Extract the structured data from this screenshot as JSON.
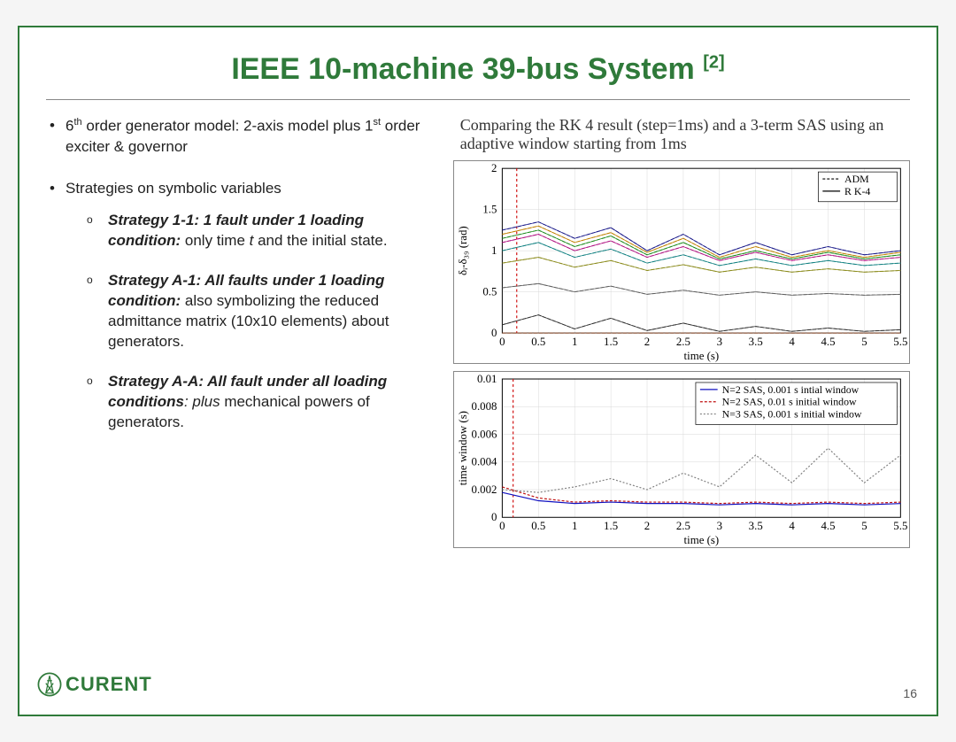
{
  "title": "IEEE 10-machine 39-bus System",
  "title_ref": "[2]",
  "bullets": {
    "b1_pre": "6",
    "b1_sup1": "th",
    "b1_mid": " order generator model: 2-axis model plus 1",
    "b1_sup2": "st",
    "b1_post": " order exciter & governor",
    "b2": "Strategies on symbolic variables",
    "s1_bold": "Strategy 1-1: 1 fault under 1 loading condition:",
    "s1_rest": " only time ",
    "s1_t": "t",
    "s1_after": " and the initial state.",
    "s2_bold": "Strategy A-1: All faults under 1 loading condition:",
    "s2_rest": " also symbolizing the reduced admittance matrix (10x10 elements) about generators.",
    "s3_bold": "Strategy A-A: All fault under all loading conditions",
    "s3_rest": ": plus",
    "s3_after": " mechanical powers of generators."
  },
  "caption": "Comparing the RK 4 result (step=1ms) and a 3-term SAS using an adaptive window starting from 1ms",
  "chart1": {
    "type": "line",
    "xlabel": "time (s)",
    "ylabel": "δᵢ-δ₃₉ (rad)",
    "xlim": [
      0,
      5.5
    ],
    "ylim": [
      0,
      2
    ],
    "xticks": [
      0,
      0.5,
      1,
      1.5,
      2,
      2.5,
      3,
      3.5,
      4,
      4.5,
      5,
      5.5
    ],
    "yticks": [
      0,
      0.5,
      1,
      1.5,
      2
    ],
    "legend": [
      "ADM",
      "R K-4"
    ],
    "grid_color": "#d8d8d8",
    "vline_x": 0.2,
    "vline_color": "#d01010",
    "series_colors": [
      "#1a1a8a",
      "#c08000",
      "#1a8a1a",
      "#b01080",
      "#108080",
      "#8a8a1a",
      "#606060",
      "#303030",
      "#905030"
    ],
    "series": [
      [
        1.25,
        1.35,
        1.15,
        1.28,
        1.0,
        1.2,
        0.95,
        1.1,
        0.95,
        1.05,
        0.95,
        1.0
      ],
      [
        1.2,
        1.3,
        1.1,
        1.22,
        0.98,
        1.15,
        0.92,
        1.05,
        0.92,
        1.0,
        0.92,
        0.98
      ],
      [
        1.15,
        1.25,
        1.05,
        1.18,
        0.95,
        1.1,
        0.9,
        1.0,
        0.9,
        0.98,
        0.9,
        0.95
      ],
      [
        1.1,
        1.2,
        1.0,
        1.12,
        0.92,
        1.05,
        0.88,
        0.98,
        0.88,
        0.95,
        0.88,
        0.92
      ],
      [
        1.0,
        1.1,
        0.92,
        1.02,
        0.85,
        0.95,
        0.82,
        0.9,
        0.82,
        0.88,
        0.82,
        0.85
      ],
      [
        0.85,
        0.92,
        0.8,
        0.88,
        0.76,
        0.83,
        0.74,
        0.8,
        0.74,
        0.78,
        0.74,
        0.76
      ],
      [
        0.55,
        0.6,
        0.5,
        0.57,
        0.47,
        0.52,
        0.46,
        0.5,
        0.46,
        0.48,
        0.46,
        0.47
      ],
      [
        0.1,
        0.22,
        0.05,
        0.18,
        0.03,
        0.12,
        0.02,
        0.08,
        0.02,
        0.06,
        0.02,
        0.04
      ],
      [
        0.0,
        0.0,
        0.0,
        0.0,
        0.0,
        0.0,
        0.0,
        0.0,
        0.0,
        0.0,
        0.0,
        0.0
      ]
    ]
  },
  "chart2": {
    "type": "line",
    "xlabel": "time (s)",
    "ylabel": "time window (s)",
    "xlim": [
      0,
      5.5
    ],
    "ylim": [
      0,
      0.01
    ],
    "xticks": [
      0,
      0.5,
      1,
      1.5,
      2,
      2.5,
      3,
      3.5,
      4,
      4.5,
      5,
      5.5
    ],
    "yticks": [
      0,
      0.002,
      0.004,
      0.006,
      0.008,
      0.01
    ],
    "legend": [
      "N=2 SAS, 0.001 s intial window",
      "N=2 SAS, 0.01 s initial window",
      "N=3 SAS, 0.001 s initial window"
    ],
    "legend_colors": [
      "#1010c0",
      "#c01010",
      "#808080"
    ],
    "grid_color": "#d8d8d8",
    "vline_x": 0.15,
    "vline_color": "#d01010",
    "series": [
      {
        "color": "#1010c0",
        "y": [
          0.0018,
          0.0012,
          0.001,
          0.0011,
          0.001,
          0.001,
          0.0009,
          0.001,
          0.0009,
          0.001,
          0.0009,
          0.001
        ]
      },
      {
        "color": "#c01010",
        "y": [
          0.0022,
          0.0014,
          0.0011,
          0.0012,
          0.0011,
          0.0011,
          0.001,
          0.0011,
          0.001,
          0.0011,
          0.001,
          0.0011
        ]
      },
      {
        "color": "#808080",
        "y": [
          0.002,
          0.0018,
          0.0022,
          0.0028,
          0.002,
          0.0032,
          0.0022,
          0.0045,
          0.0025,
          0.005,
          0.0025,
          0.0045
        ]
      }
    ]
  },
  "logo_text": "CURENT",
  "page_number": "16"
}
